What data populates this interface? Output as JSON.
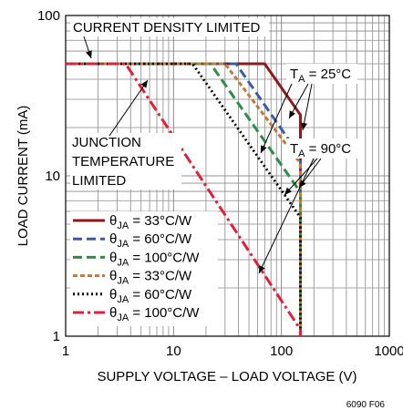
{
  "chart_data": {
    "type": "line",
    "title": "",
    "xlabel": "SUPPLY VOLTAGE – LOAD VOLTAGE (V)",
    "ylabel": "LOAD CURRENT (mA)",
    "x_scale": "log",
    "y_scale": "log",
    "xlim": [
      1,
      1000
    ],
    "ylim": [
      1,
      100
    ],
    "x_ticks": [
      "1",
      "10",
      "100",
      "1000"
    ],
    "y_ticks": [
      "1",
      "10",
      "100"
    ],
    "grid": true,
    "legend_position": "lower-left",
    "series": [
      {
        "name": "θJA = 33°C/W",
        "label_main": "θ",
        "label_sub": "JA",
        "label_rest": " = 33°C/W",
        "color": "#8b1a1a",
        "dash": "solid",
        "x": [
          1,
          70,
          150,
          150
        ],
        "y": [
          50,
          50,
          24,
          1
        ]
      },
      {
        "name": "θJA = 60°C/W",
        "label_main": "θ",
        "label_sub": "JA",
        "label_rest": " = 60°C/W",
        "color": "#3a5ba8",
        "dash": "dashed",
        "x": [
          1,
          38,
          150,
          150
        ],
        "y": [
          50,
          50,
          13.2,
          1
        ]
      },
      {
        "name": "θJA = 100°C/W",
        "label_main": "θ",
        "label_sub": "JA",
        "label_rest": " = 100°C/W",
        "color": "#2e8b4a",
        "dash": "dashed",
        "x": [
          1,
          22,
          150,
          150
        ],
        "y": [
          50,
          50,
          7.9,
          1
        ]
      },
      {
        "name": "θJA = 33°C/W",
        "label_main": "θ",
        "label_sub": "JA",
        "label_rest": " = 33°C/W",
        "color": "#c07a3a",
        "dash": "short-dashed",
        "x": [
          1,
          30,
          150,
          150
        ],
        "y": [
          50,
          50,
          12,
          1
        ]
      },
      {
        "name": "θJA = 60°C/W",
        "label_main": "θ",
        "label_sub": "JA",
        "label_rest": " = 60°C/W",
        "color": "#000000",
        "dash": "dotted",
        "x": [
          1,
          15,
          150,
          150
        ],
        "y": [
          50,
          50,
          5.5,
          1
        ]
      },
      {
        "name": "θJA = 100°C/W",
        "label_main": "θ",
        "label_sub": "JA",
        "label_rest": " = 100°C/W",
        "color": "#e0203a",
        "dash": "dash-dot",
        "x": [
          1,
          3.6,
          150,
          150
        ],
        "y": [
          50,
          50,
          1.1,
          1
        ]
      }
    ],
    "annotations": {
      "current_density": "CURRENT DENSITY LIMITED",
      "junction_1": "JUNCTION",
      "junction_2": "TEMPERATURE",
      "junction_3": "LIMITED",
      "ta25_main": "T",
      "ta25_sub": "A",
      "ta25_rest": " = 25°C",
      "ta90_main": "T",
      "ta90_sub": "A",
      "ta90_rest": " = 90°C"
    },
    "figure_id": "6090 F06"
  }
}
